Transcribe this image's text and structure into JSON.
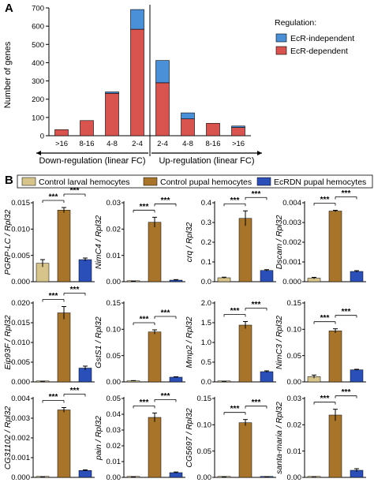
{
  "panel_a": {
    "letter": "A",
    "legend_title": "Regulation:",
    "ylabel": "Number of genes",
    "down_label": "Down-regulation (linear FC)",
    "up_label": "Up-regulation (linear FC)",
    "colors": {
      "dependent": "#d9534f",
      "independent": "#4a90d9"
    }
  },
  "panel_b": {
    "letter": "B",
    "legend": [
      "Control larval hemocytes",
      "Control pupal hemocytes",
      "EcRDN pupal hemocytes"
    ],
    "colors": [
      "#d6c48a",
      "#a8742a",
      "#2b4fb8"
    ],
    "sig": "***"
  },
  "chart_data": [
    {
      "type": "bar",
      "stacked": true,
      "ylabel": "Number of genes",
      "ylim": [
        0,
        700
      ],
      "yticks": [
        0,
        100,
        200,
        300,
        400,
        500,
        600,
        700
      ],
      "categories": [
        ">16",
        "8-16",
        "4-8",
        "2-4",
        "2-4",
        "4-8",
        "8-16",
        ">16"
      ],
      "groups": [
        {
          "name": "Down-regulation (linear FC)",
          "categories": [
            ">16",
            "8-16",
            "4-8",
            "2-4"
          ]
        },
        {
          "name": "Up-regulation (linear FC)",
          "categories": [
            "2-4",
            "4-8",
            "8-16",
            ">16"
          ]
        }
      ],
      "series": [
        {
          "name": "EcR-dependent",
          "values": [
            33,
            83,
            232,
            583,
            290,
            92,
            68,
            45
          ]
        },
        {
          "name": "EcR-independent",
          "values": [
            0,
            0,
            8,
            108,
            122,
            33,
            0,
            8
          ]
        }
      ],
      "legend_title": "Regulation:",
      "legend": [
        "EcR-independent",
        "EcR-dependent"
      ]
    },
    {
      "type": "bar",
      "categories": [
        "Control larval hemocytes",
        "Control pupal hemocytes",
        "EcRDN pupal hemocytes"
      ],
      "panels": [
        {
          "ylabel": "PGRP-LC / Rpl32",
          "yticks": [
            "0.000",
            "0.005",
            "0.010",
            "0.015"
          ],
          "ylim": [
            0,
            0.015
          ],
          "values": [
            0.0035,
            0.0136,
            0.0042
          ],
          "errors": [
            0.0007,
            0.0005,
            0.0003
          ]
        },
        {
          "ylabel": "NimC4 / Rpl32",
          "yticks": [
            "0.00",
            "0.01",
            "0.02",
            "0.03"
          ],
          "ylim": [
            0,
            0.03
          ],
          "values": [
            0.0001,
            0.0226,
            0.0006
          ],
          "errors": [
            5e-05,
            0.0019,
            0.0002
          ]
        },
        {
          "ylabel": "crq / Rpl32",
          "yticks": [
            "0.0",
            "0.1",
            "0.2",
            "0.3",
            "0.4"
          ],
          "ylim": [
            0,
            0.4
          ],
          "values": [
            0.02,
            0.321,
            0.057
          ],
          "errors": [
            0.003,
            0.038,
            0.004
          ]
        },
        {
          "ylabel": "Dscam / Rpl32",
          "yticks": [
            "0.000",
            "0.001",
            "0.002",
            "0.003",
            "0.004"
          ],
          "ylim": [
            0,
            0.004
          ],
          "values": [
            0.00018,
            0.00358,
            0.00052
          ],
          "errors": [
            4e-05,
            4e-05,
            4e-05
          ]
        },
        {
          "ylabel": "Eip93F / Rpl32",
          "yticks": [
            "0.000",
            "0.005",
            "0.010",
            "0.015",
            "0.020"
          ],
          "ylim": [
            0,
            0.02
          ],
          "values": [
            0.0001,
            0.0175,
            0.0035
          ],
          "errors": [
            5e-05,
            0.0016,
            0.0005
          ]
        },
        {
          "ylabel": "GstS1 / Rpl32",
          "yticks": [
            "0.00",
            "0.05",
            "0.10",
            "0.15"
          ],
          "ylim": [
            0,
            0.15
          ],
          "values": [
            0.002,
            0.095,
            0.009
          ],
          "errors": [
            0.0005,
            0.004,
            0.0008
          ]
        },
        {
          "ylabel": "Mmp2 / Rpl32",
          "yticks": [
            "0.0",
            "0.5",
            "1.0",
            "1.5",
            "2.0"
          ],
          "ylim": [
            0,
            2.0
          ],
          "values": [
            0.01,
            1.44,
            0.26
          ],
          "errors": [
            0.005,
            0.09,
            0.02
          ]
        },
        {
          "ylabel": "NimC3 / Rpl32",
          "yticks": [
            "0.00",
            "0.05",
            "0.10",
            "0.15"
          ],
          "ylim": [
            0,
            0.15
          ],
          "values": [
            0.01,
            0.097,
            0.023
          ],
          "errors": [
            0.003,
            0.004,
            0.001
          ]
        },
        {
          "ylabel": "CG31102 / Rpl32",
          "yticks": [
            "0.000",
            "0.001",
            "0.002",
            "0.003",
            "0.004"
          ],
          "ylim": [
            0,
            0.004
          ],
          "values": [
            1e-05,
            0.00342,
            0.00035
          ],
          "errors": [
            5e-06,
            0.00012,
            3e-05
          ]
        },
        {
          "ylabel": "pain / Rpl32",
          "yticks": [
            "0.00",
            "0.01",
            "0.02",
            "0.03",
            "0.04",
            "0.05"
          ],
          "ylim": [
            0,
            0.05
          ],
          "values": [
            0.0002,
            0.038,
            0.003
          ],
          "errors": [
            0.0001,
            0.0028,
            0.0004
          ]
        },
        {
          "ylabel": "CG5697 / Rpl32",
          "yticks": [
            "0.00",
            "0.05",
            "0.10",
            "0.15"
          ],
          "ylim": [
            0,
            0.15
          ],
          "values": [
            0.0005,
            0.104,
            0.0008
          ],
          "errors": [
            0.0002,
            0.006,
            0.0002
          ]
        },
        {
          "ylabel": "santa-maria / Rpl32",
          "yticks": [
            "0.00",
            "0.01",
            "0.02",
            "0.03"
          ],
          "ylim": [
            0,
            0.03
          ],
          "values": [
            0.0002,
            0.0237,
            0.0027
          ],
          "errors": [
            0.0001,
            0.0022,
            0.0006
          ]
        }
      ]
    }
  ]
}
